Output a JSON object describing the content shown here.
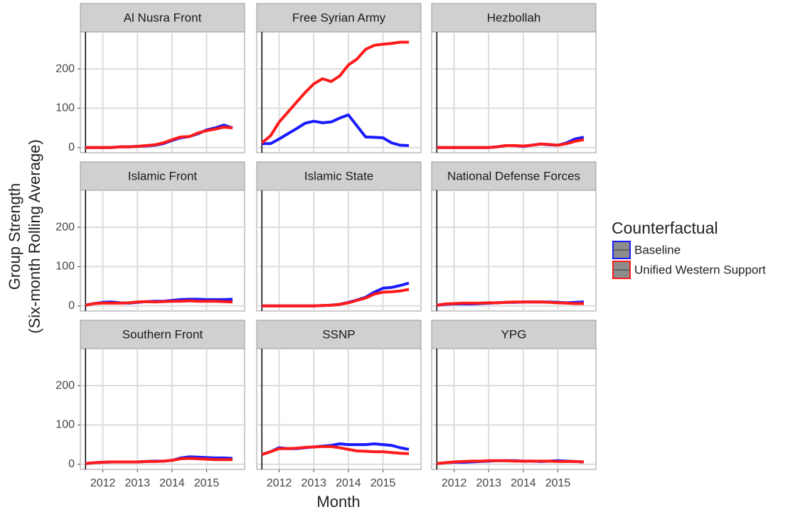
{
  "chart_data": {
    "type": "line",
    "x_label": "Month",
    "y_label": [
      "Group Strength",
      "(Six-month Rolling Average)"
    ],
    "legend_title": "Counterfactual",
    "legend": [
      {
        "name": "Baseline",
        "color": "#1a1aff"
      },
      {
        "name": "Unified Western Support",
        "color": "#ff1a1a"
      }
    ],
    "x": [
      2011.5,
      2011.75,
      2012,
      2012.25,
      2012.5,
      2012.75,
      2013,
      2013.25,
      2013.5,
      2013.75,
      2014,
      2014.25,
      2014.5,
      2014.75,
      2015,
      2015.25,
      2015.5,
      2015.75
    ],
    "xlim": [
      2011.35,
      2016.1
    ],
    "xticks": [
      2012,
      2013,
      2014,
      2015
    ],
    "ylim": [
      -13,
      294
    ],
    "yticks": [
      0,
      100,
      200
    ],
    "vline": 2011.5,
    "grid": true,
    "facets": [
      {
        "title": "Al Nusra Front",
        "series": [
          {
            "values": [
              0,
              0,
              0,
              0,
              2,
              2,
              3,
              4,
              6,
              10,
              18,
              25,
              28,
              35,
              45,
              50,
              57,
              50
            ]
          },
          {
            "values": [
              0,
              0,
              0,
              0,
              2,
              2,
              3,
              5,
              7,
              12,
              20,
              27,
              28,
              37,
              43,
              47,
              52,
              50
            ]
          }
        ]
      },
      {
        "title": "Free Syrian Army",
        "series": [
          {
            "values": [
              10,
              10,
              22,
              35,
              48,
              62,
              67,
              63,
              65,
              75,
              83,
              55,
              27,
              26,
              25,
              12,
              6,
              5
            ]
          },
          {
            "values": [
              12,
              30,
              65,
              90,
              115,
              140,
              162,
              175,
              168,
              182,
              210,
              225,
              250,
              260,
              263,
              265,
              268,
              268
            ]
          }
        ]
      },
      {
        "title": "Hezbollah",
        "series": [
          {
            "values": [
              0,
              0,
              0,
              0,
              0,
              0,
              0,
              2,
              5,
              5,
              3,
              6,
              9,
              7,
              6,
              12,
              22,
              26
            ]
          },
          {
            "values": [
              0,
              0,
              0,
              0,
              0,
              0,
              0,
              2,
              5,
              5,
              4,
              6,
              9,
              8,
              6,
              10,
              16,
              20
            ]
          }
        ]
      },
      {
        "title": "Islamic Front",
        "series": [
          {
            "values": [
              2,
              6,
              9,
              10,
              8,
              7,
              9,
              11,
              12,
              12,
              14,
              16,
              17,
              17,
              16,
              16,
              16,
              17
            ]
          },
          {
            "values": [
              2,
              6,
              7,
              7,
              7,
              8,
              10,
              11,
              10,
              11,
              12,
              12,
              13,
              12,
              12,
              12,
              11,
              10
            ]
          }
        ]
      },
      {
        "title": "Islamic State",
        "series": [
          {
            "values": [
              0,
              0,
              0,
              0,
              0,
              0,
              0,
              1,
              2,
              4,
              9,
              15,
              22,
              35,
              45,
              47,
              52,
              58
            ]
          },
          {
            "values": [
              0,
              0,
              0,
              0,
              0,
              0,
              0,
              1,
              2,
              4,
              8,
              14,
              20,
              30,
              35,
              36,
              38,
              42
            ]
          }
        ]
      },
      {
        "title": "National Defense Forces",
        "series": [
          {
            "values": [
              2,
              4,
              5,
              5,
              5,
              6,
              7,
              8,
              9,
              9,
              10,
              10,
              10,
              10,
              9,
              8,
              9,
              10
            ]
          },
          {
            "values": [
              2,
              5,
              6,
              7,
              7,
              7,
              8,
              8,
              9,
              10,
              10,
              10,
              10,
              9,
              8,
              7,
              6,
              6
            ]
          }
        ]
      },
      {
        "title": "Southern Front",
        "series": [
          {
            "values": [
              2,
              4,
              5,
              6,
              6,
              6,
              6,
              7,
              8,
              8,
              10,
              16,
              19,
              18,
              17,
              16,
              16,
              15
            ]
          },
          {
            "values": [
              2,
              4,
              5,
              6,
              6,
              6,
              6,
              7,
              7,
              8,
              10,
              14,
              15,
              14,
              13,
              12,
              12,
              12
            ]
          }
        ]
      },
      {
        "title": "SSNP",
        "series": [
          {
            "values": [
              25,
              32,
              42,
              40,
              40,
              42,
              44,
              46,
              48,
              52,
              50,
              50,
              50,
              52,
              50,
              48,
              42,
              38
            ]
          },
          {
            "values": [
              25,
              32,
              40,
              40,
              41,
              43,
              44,
              45,
              45,
              42,
              38,
              34,
              33,
              32,
              32,
              30,
              28,
              27
            ]
          }
        ]
      },
      {
        "title": "YPG",
        "series": [
          {
            "values": [
              2,
              4,
              5,
              5,
              6,
              7,
              8,
              9,
              9,
              9,
              8,
              8,
              7,
              8,
              9,
              8,
              7,
              6
            ]
          },
          {
            "values": [
              2,
              4,
              6,
              7,
              8,
              8,
              9,
              9,
              9,
              8,
              8,
              8,
              8,
              8,
              7,
              7,
              7,
              6
            ]
          }
        ]
      }
    ]
  }
}
